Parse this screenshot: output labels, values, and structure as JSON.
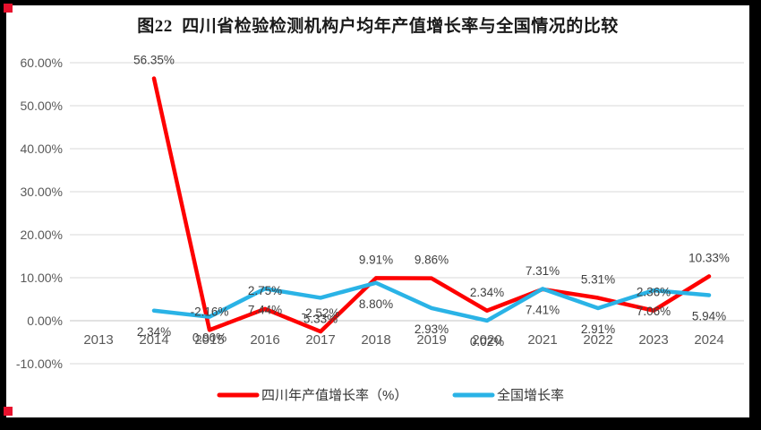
{
  "title": "图22  四川省检验检测机构户均年产值增长率与全国情况的比较",
  "corner_marker_color": "#e8112d",
  "chart_data": {
    "type": "line",
    "x": [
      "2013",
      "2014",
      "2015",
      "2016",
      "2017",
      "2018",
      "2019",
      "2020",
      "2021",
      "2022",
      "2023",
      "2024"
    ],
    "series": [
      {
        "name": "四川年产值增长率（%）",
        "color": "#fe0000",
        "label_position": "above",
        "values": [
          null,
          56.35,
          -2.16,
          2.75,
          -2.52,
          9.91,
          9.86,
          2.34,
          7.31,
          5.31,
          2.36,
          10.33
        ]
      },
      {
        "name": "全国增长率",
        "color": "#2ab3e6",
        "label_position": "below",
        "values": [
          null,
          2.34,
          0.9,
          7.44,
          5.33,
          8.8,
          2.93,
          0.02,
          7.41,
          2.91,
          7.06,
          5.94
        ]
      }
    ],
    "ylim": [
      -10,
      60
    ],
    "ytick_labels": [
      "60.00%",
      "50.00%",
      "40.00%",
      "30.00%",
      "20.00%",
      "10.00%",
      "0.00%",
      "-10.00%"
    ],
    "ytick_values": [
      60,
      50,
      40,
      30,
      20,
      10,
      0,
      -10
    ],
    "grid": true,
    "legend_position": "bottom",
    "label_format": "0.00%"
  }
}
